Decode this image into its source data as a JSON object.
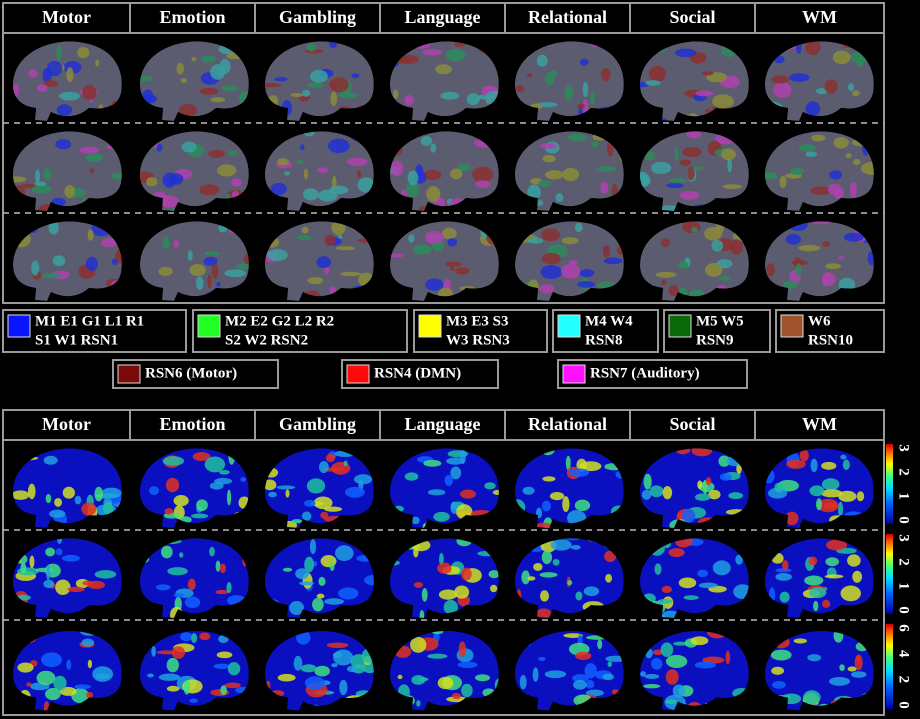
{
  "top_panel": {
    "columns": [
      "Motor",
      "Emotion",
      "Gambling",
      "Language",
      "Relational",
      "Social",
      "WM"
    ]
  },
  "legend": {
    "items": [
      {
        "lines": [
          "M1 E1 G1 L1 R1",
          "S1 W1 RSN1"
        ],
        "color": "#0a14ff"
      },
      {
        "lines": [
          "M2 E2 G2 L2 R2",
          "S2 W2 RSN2"
        ],
        "color": "#22ff22"
      },
      {
        "lines": [
          "M3 E3 S3",
          "W3 RSN3"
        ],
        "color": "#ffff00"
      },
      {
        "lines": [
          "M4 W4",
          "RSN8"
        ],
        "color": "#22ffff"
      },
      {
        "lines": [
          "M5 W5",
          "RSN9"
        ],
        "color": "#0a6a0a"
      },
      {
        "lines": [
          "W6",
          "RSN10"
        ],
        "color": "#a0522d"
      },
      {
        "lines": [
          "RSN6 (Motor)"
        ],
        "color": "#7a0a0a"
      },
      {
        "lines": [
          "RSN4 (DMN)"
        ],
        "color": "#ff0a0a"
      },
      {
        "lines": [
          "RSN7 (Auditory)"
        ],
        "color": "#ff10ff"
      }
    ]
  },
  "bottom_panel": {
    "columns": [
      "Motor",
      "Emotion",
      "Gambling",
      "Language",
      "Relational",
      "Social",
      "WM"
    ],
    "colorbars": [
      {
        "ticks": [
          3,
          2,
          1,
          0
        ]
      },
      {
        "ticks": [
          3,
          2,
          1,
          0
        ]
      },
      {
        "ticks": [
          6,
          4,
          2,
          0
        ]
      }
    ]
  }
}
